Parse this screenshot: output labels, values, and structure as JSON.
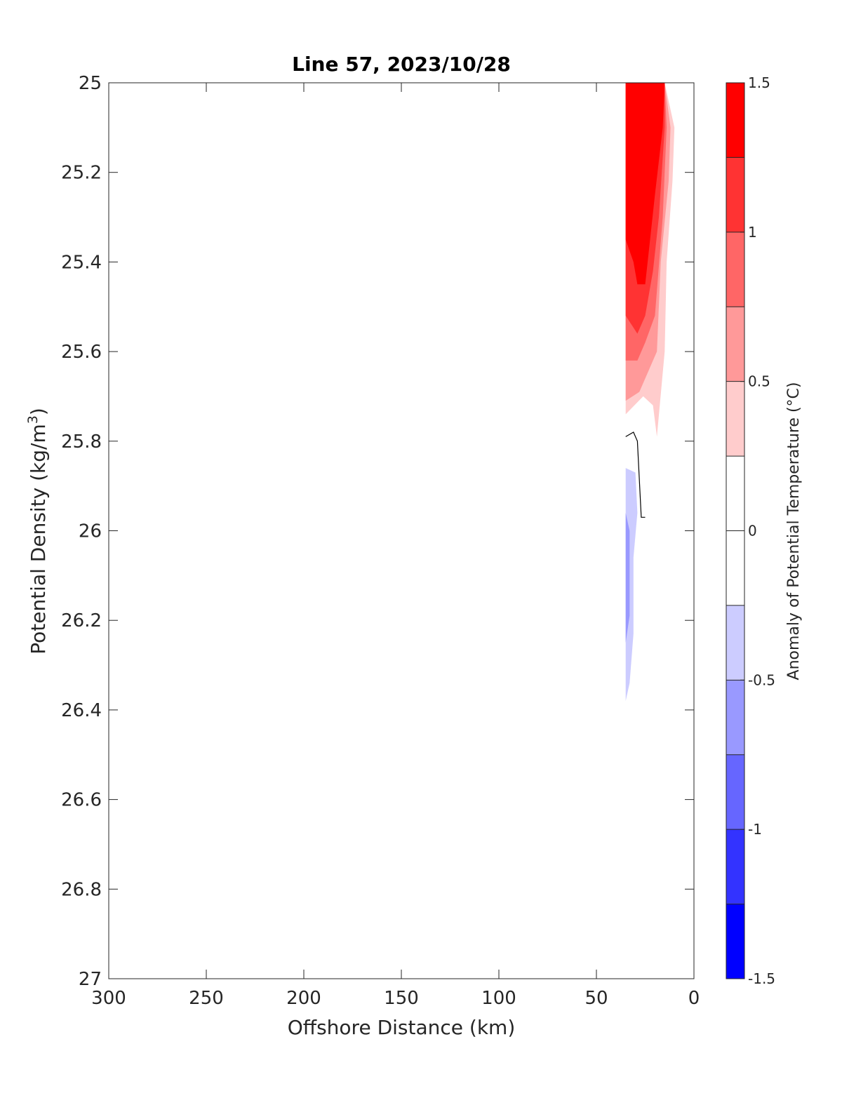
{
  "chart_data": {
    "type": "contour",
    "title": "Line 57, 2023/10/28",
    "xlabel": "Offshore Distance (km)",
    "ylabel": "Potential Density (kg/m",
    "ylabel_sup": "3",
    "ylabel_close": ")",
    "xlim": [
      300,
      0
    ],
    "x_reversed": true,
    "ylim": [
      25,
      27
    ],
    "y_reversed": true,
    "x_ticks": [
      300,
      250,
      200,
      150,
      100,
      50,
      0
    ],
    "x_tick_labels": [
      "300",
      "250",
      "200",
      "150",
      "100",
      "50",
      "0"
    ],
    "y_ticks": [
      25,
      25.2,
      25.4,
      25.6,
      25.8,
      26,
      26.2,
      26.4,
      26.6,
      26.8,
      27
    ],
    "y_tick_labels": [
      "25",
      "25.2",
      "25.4",
      "25.6",
      "25.8",
      "26",
      "26.2",
      "26.4",
      "26.6",
      "26.8",
      "27"
    ],
    "grid": false,
    "colorbar": {
      "label": "Anomaly of Potential Temperature (°C)",
      "limits": [
        -1.5,
        1.5
      ],
      "levels": [
        -1.5,
        -1.25,
        -1,
        -0.75,
        -0.5,
        -0.25,
        0,
        0.25,
        0.5,
        0.75,
        1,
        1.25,
        1.5
      ],
      "colors": [
        "#0000ff",
        "#3333ff",
        "#6666ff",
        "#9999ff",
        "#ccccff",
        "#ffffff",
        "#ffffff",
        "#ffcccc",
        "#ff9999",
        "#ff6666",
        "#ff3333",
        "#ff0000"
      ],
      "tick_values": [
        1.5,
        1,
        0.5,
        0,
        -0.5,
        -1,
        -1.5
      ],
      "tick_labels": [
        "1.5",
        "1",
        "0.5",
        "0",
        "-0.5",
        "-1",
        "-1.5"
      ]
    },
    "filled_regions": [
      {
        "level": "0.25 to 0.5",
        "color": "#ffcccc",
        "points": [
          [
            35,
            25
          ],
          [
            15,
            25
          ],
          [
            10,
            25.1
          ],
          [
            11,
            25.22
          ],
          [
            14,
            25.4
          ],
          [
            15,
            25.6
          ],
          [
            19,
            25.79
          ],
          [
            21,
            25.72
          ],
          [
            26,
            25.7
          ],
          [
            35,
            25.74
          ]
        ]
      },
      {
        "level": "0.5 to 0.75",
        "color": "#ff9999",
        "points": [
          [
            35,
            25
          ],
          [
            15,
            25
          ],
          [
            12,
            25.1
          ],
          [
            13,
            25.22
          ],
          [
            17,
            25.4
          ],
          [
            19,
            25.6
          ],
          [
            23,
            25.64
          ],
          [
            28,
            25.69
          ],
          [
            35,
            25.71
          ]
        ]
      },
      {
        "level": "0.75 to 1",
        "color": "#ff6666",
        "points": [
          [
            35,
            25
          ],
          [
            15,
            25
          ],
          [
            14,
            25.1
          ],
          [
            16,
            25.3
          ],
          [
            20,
            25.52
          ],
          [
            25,
            25.58
          ],
          [
            29,
            25.62
          ],
          [
            35,
            25.62
          ]
        ]
      },
      {
        "level": "1 to 1.25",
        "color": "#ff3333",
        "points": [
          [
            35,
            25
          ],
          [
            15,
            25
          ],
          [
            15,
            25.1
          ],
          [
            18,
            25.3
          ],
          [
            21,
            25.42
          ],
          [
            25,
            25.52
          ],
          [
            29,
            25.56
          ],
          [
            35,
            25.52
          ]
        ]
      },
      {
        "level": "1.25 to 1.5",
        "color": "#ff0000",
        "points": [
          [
            35,
            25
          ],
          [
            15,
            25
          ],
          [
            16,
            25.1
          ],
          [
            20,
            25.25
          ],
          [
            23,
            25.37
          ],
          [
            25,
            25.45
          ],
          [
            29,
            25.45
          ],
          [
            31,
            25.4
          ],
          [
            35,
            25.35
          ]
        ]
      },
      {
        "level": "-0.5 to -0.25",
        "color": "#ccccff",
        "points": [
          [
            35,
            25.86
          ],
          [
            30,
            25.87
          ],
          [
            29,
            25.96
          ],
          [
            31,
            26.06
          ],
          [
            31,
            26.23
          ],
          [
            33,
            26.34
          ],
          [
            35,
            26.38
          ]
        ]
      },
      {
        "level": "-0.75 to -0.5",
        "color": "#9999ff",
        "points": [
          [
            35,
            25.96
          ],
          [
            33,
            26
          ],
          [
            33,
            26.09
          ],
          [
            33,
            26.19
          ],
          [
            35,
            26.25
          ]
        ]
      }
    ],
    "zero_contour": [
      [
        35,
        25.79
      ],
      [
        31,
        25.78
      ],
      [
        29,
        25.8
      ],
      [
        27,
        25.97
      ],
      [
        25,
        25.97
      ]
    ]
  }
}
